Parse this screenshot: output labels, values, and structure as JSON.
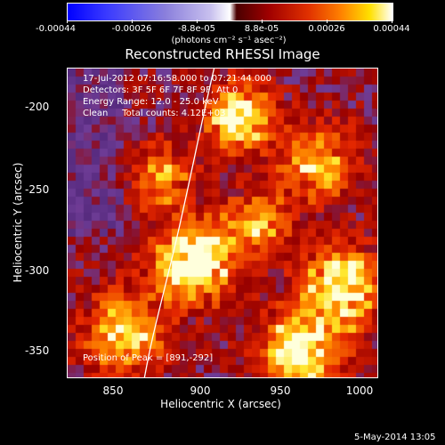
{
  "colorbar": {
    "ticks": [
      "-0.00044",
      "-0.00026",
      "-8.8e-05",
      "8.8e-05",
      "0.00026",
      "0.00044"
    ],
    "unit_label": "(photons cm⁻² s⁻¹ asec⁻²)"
  },
  "title": "Reconstructed RHESSI Image",
  "info": {
    "time_range": "17-Jul-2012 07:16:58.000 to 07:21:44.000",
    "detectors": "Detectors: 3F 5F 6F 7F 8F 9F, Att 0",
    "energy": "Energy Range: 12.0 - 25.0 keV",
    "clean": "Clean     Total counts: 4.12E+03",
    "peak": "Position of Peak = [891,-292]"
  },
  "axes": {
    "xlabel": "Heliocentric X (arcsec)",
    "ylabel": "Heliocentric Y (arcsec)",
    "xticks": [
      "850",
      "900",
      "950",
      "1000"
    ],
    "yticks": [
      "-200",
      "-250",
      "-300",
      "-350"
    ]
  },
  "datestamp": "5-May-2014 13:05",
  "colors": {
    "background": "#000000",
    "low": "#4b1f6a",
    "mid": "#c01000",
    "high": "#ffe000",
    "limb_line": "#ffffff"
  }
}
